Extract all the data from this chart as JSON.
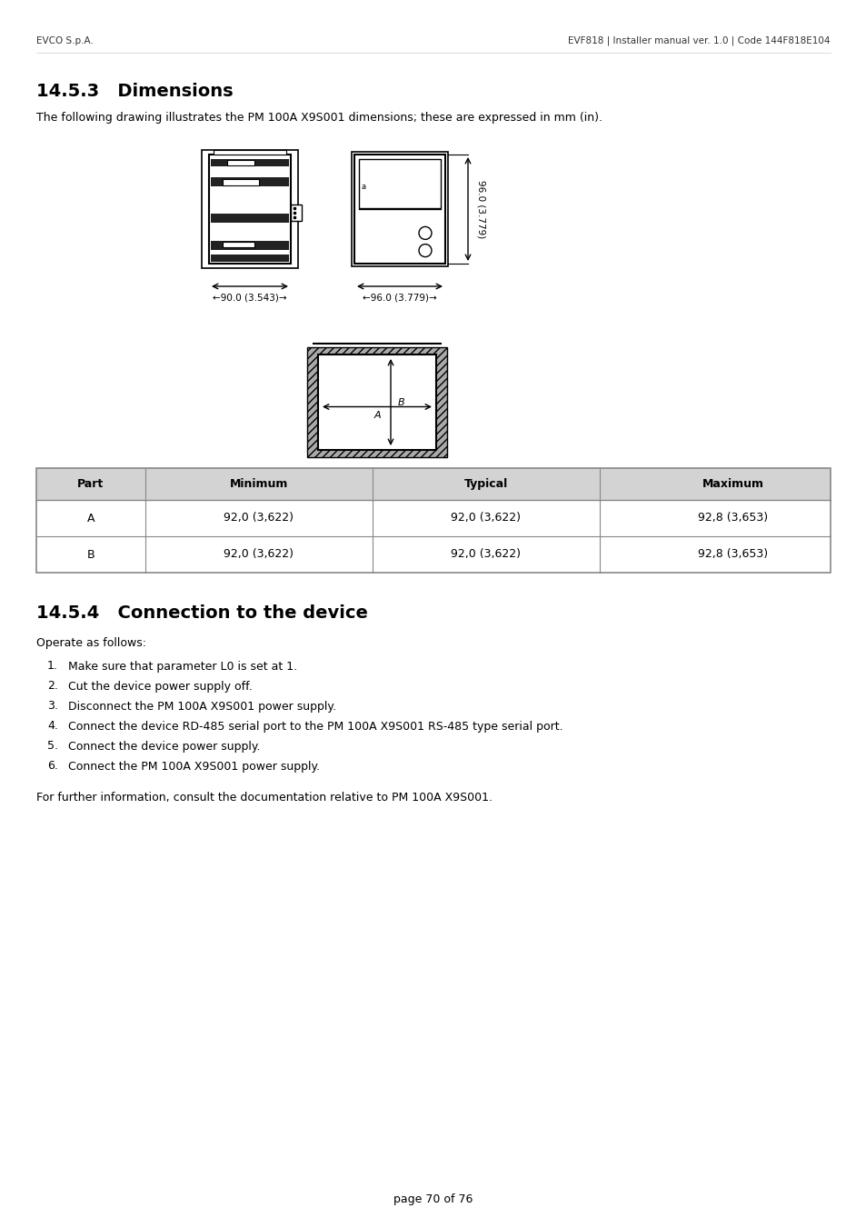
{
  "header_left": "EVCO S.p.A.",
  "header_right": "EVF818 | Installer manual ver. 1.0 | Code 144F818E104",
  "section_title": "14.5.3   Dimensions",
  "section_body": "The following drawing illustrates the PM 100A X9S001 dimensions; these are expressed in mm (in).",
  "section2_title": "14.5.4   Connection to the device",
  "section2_intro": "Operate as follows:",
  "steps": [
    "Make sure that parameter L0 is set at 1.",
    "Cut the device power supply off.",
    "Disconnect the PM 100A X9S001 power supply.",
    "Connect the device RD-485 serial port to the PM 100A X9S001 RS-485 type serial port.",
    "Connect the device power supply.",
    "Connect the PM 100A X9S001 power supply."
  ],
  "footer_note": "For further information, consult the documentation relative to PM 100A X9S001.",
  "footer_page": "page 70 of 76",
  "dim_width1": "90.0 (3.543)",
  "dim_width2": "96.0 (3.779)",
  "dim_height": "96.0 (3.779)",
  "table_headers": [
    "Part",
    "Minimum",
    "Typical",
    "Maximum"
  ],
  "table_rows": [
    [
      "A",
      "92,0 (3,622)",
      "92,0 (3,622)",
      "92,8 (3,653)"
    ],
    [
      "B",
      "92,0 (3,622)",
      "92,0 (3,622)",
      "92,8 (3,653)"
    ]
  ],
  "bg_color": "#ffffff",
  "text_color": "#000000",
  "header_fontsize": 7.5,
  "body_fontsize": 9,
  "title_fontsize": 14,
  "table_header_bg": "#d0d0d0"
}
